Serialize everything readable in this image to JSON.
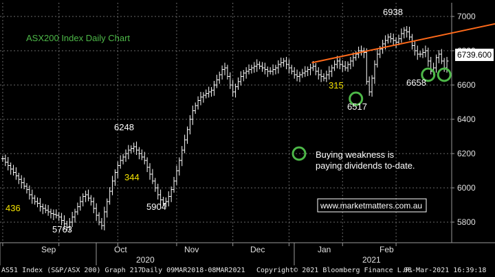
{
  "chart_data": {
    "type": "bar",
    "title": "ASX200 Index Daily Chart",
    "xlabel": "",
    "ylabel": "",
    "ylim": [
      5680,
      7080
    ],
    "y_ticks": [
      "5800",
      "6000",
      "6200",
      "6400",
      "6600",
      "6800",
      "7000"
    ],
    "x_ticks": [
      "Sep",
      "Oct",
      "Nov",
      "Dec",
      "Jan",
      "Feb"
    ],
    "year_labels": [
      "2020",
      "2021"
    ],
    "last_price": "6739.600",
    "grid": true,
    "series": [
      {
        "values": [
          6170,
          6150,
          6130,
          6110,
          6090,
          6070,
          6050,
          6030,
          6010,
          5990,
          5960,
          5940,
          5920,
          5910,
          5890,
          5880,
          5870,
          5860,
          5850,
          5845,
          5840,
          5830,
          5810,
          5790,
          5770,
          5800,
          5830,
          5860,
          5890,
          5920,
          5950,
          5960,
          5940,
          5920,
          5880,
          5840,
          5800,
          5780,
          5860,
          5920,
          5980,
          6040,
          6090,
          6130,
          6160,
          6180,
          6200,
          6220,
          6230,
          6240,
          6220,
          6200,
          6180,
          6160,
          6120,
          6080,
          6040,
          6000,
          5960,
          5930,
          5910,
          5920,
          5950,
          5990,
          6040,
          6100,
          6160,
          6220,
          6280,
          6340,
          6400,
          6450,
          6480,
          6510,
          6530,
          6540,
          6550,
          6560,
          6570,
          6600,
          6630,
          6660,
          6690,
          6700,
          6650,
          6600,
          6560,
          6590,
          6620,
          6650,
          6670,
          6680,
          6690,
          6700,
          6710,
          6720,
          6710,
          6700,
          6690,
          6680,
          6680,
          6690,
          6700,
          6720,
          6730,
          6740,
          6720,
          6700,
          6680,
          6660,
          6650,
          6660,
          6670,
          6680,
          6690,
          6700,
          6710,
          6680,
          6660,
          6650,
          6640,
          6660,
          6680,
          6700,
          6720,
          6740,
          6720,
          6710,
          6700,
          6720,
          6740,
          6760,
          6780,
          6800,
          6800,
          6790,
          6620,
          6560,
          6640,
          6720,
          6780,
          6810,
          6840,
          6860,
          6880,
          6870,
          6860,
          6850,
          6870,
          6900,
          6920,
          6910,
          6880,
          6830,
          6800,
          6780,
          6780,
          6790,
          6800,
          6740,
          6680,
          6700,
          6760,
          6780,
          6740,
          6700,
          6740
        ]
      }
    ],
    "annotations": [
      {
        "text": "6938",
        "color": "#ffffff"
      },
      {
        "text": "6248",
        "color": "#ffffff"
      },
      {
        "text": "5904",
        "color": "#ffffff"
      },
      {
        "text": "5763",
        "color": "#ffffff"
      },
      {
        "text": "6517",
        "color": "#ffffff"
      },
      {
        "text": "6658",
        "color": "#ffffff"
      },
      {
        "text": "436",
        "color": "#f5e400"
      },
      {
        "text": "344",
        "color": "#f5e400"
      },
      {
        "text": "315",
        "color": "#f5e400"
      }
    ],
    "trendline": {
      "from": [
        116,
        6730
      ],
      "to": [
        166,
        6990
      ],
      "color": "#ff6a1a"
    },
    "highlight_markers": [
      [
        132,
        6520
      ],
      [
        159,
        6660
      ],
      [
        165,
        6660
      ]
    ],
    "legend_note": {
      "line1": "Buying weakness is",
      "line2": "paying dividends to-date."
    },
    "watermark": "www.marketmatters.com.au",
    "colors": {
      "background": "#000000",
      "grid": "#6a6a6a",
      "bars": "#ffffff",
      "marker": "#4db848",
      "trend": "#ff6a1a",
      "price_box": "#ffffff"
    }
  },
  "footer": {
    "security": "AS51 Index (S&P/ASX 200) Graph 217",
    "range": "Daily 09MAR2018-08MAR2021",
    "copyright": "Copyright© 2021 Bloomberg Finance L.P.",
    "timestamp": "08-Mar-2021 16:39:18"
  }
}
